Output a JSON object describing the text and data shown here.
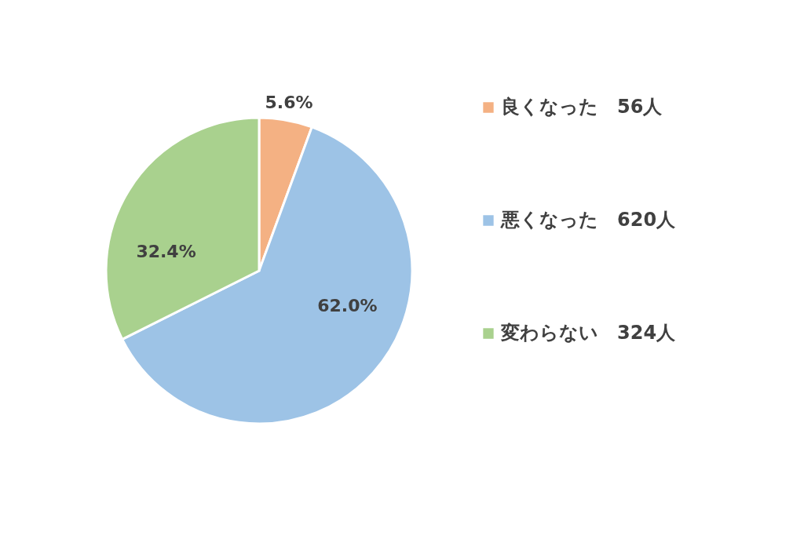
{
  "chart_data": {
    "type": "pie",
    "categories": [
      "良くなった　56人",
      "悪くなった　620人",
      "変わらない　324人"
    ],
    "values": [
      5.6,
      62.0,
      32.4
    ],
    "colors": [
      "#f4b183",
      "#9dc3e6",
      "#a9d18e"
    ],
    "value_labels": [
      "5.6%",
      "62.0%",
      "32.4%"
    ],
    "legend": "right"
  }
}
